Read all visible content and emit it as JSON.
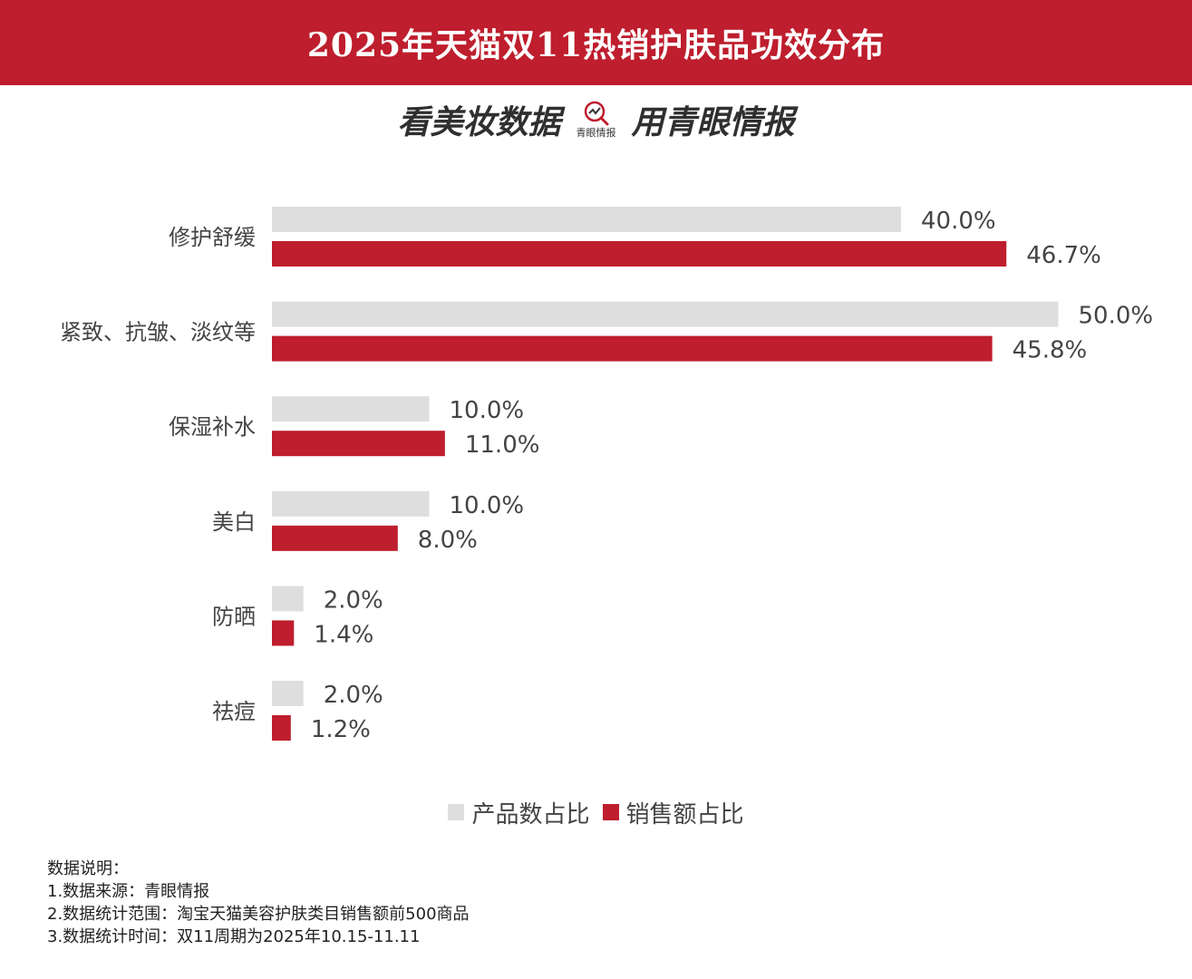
{
  "title": "2025年天猫双11热销护肤品功效分布",
  "slogan": {
    "left": "看美妆数据",
    "logo_caption": "青眼情报",
    "right": "用青眼情报"
  },
  "colors": {
    "brand_red": "#be1e2d",
    "product_gray": "#dedede",
    "sales_red": "#be1e2d"
  },
  "chart_data": {
    "type": "bar",
    "orientation": "horizontal",
    "categories": [
      "修护舒缓",
      "紧致、抗皱、淡纹等",
      "保湿补水",
      "美白",
      "防晒",
      "祛痘"
    ],
    "series": [
      {
        "name": "产品数占比",
        "color": "#dedede",
        "values": [
          40.0,
          50.0,
          10.0,
          10.0,
          2.0,
          2.0
        ],
        "labels": [
          "40.0%",
          "50.0%",
          "10.0%",
          "10.0%",
          "2.0%",
          "2.0%"
        ]
      },
      {
        "name": "销售额占比",
        "color": "#be1e2d",
        "values": [
          46.7,
          45.8,
          11.0,
          8.0,
          1.4,
          1.2
        ],
        "labels": [
          "46.7%",
          "45.8%",
          "11.0%",
          "8.0%",
          "1.4%",
          "1.2%"
        ]
      }
    ],
    "unit": "%",
    "legend_position": "bottom-center"
  },
  "legend": {
    "product": "产品数占比",
    "sales": "销售额占比"
  },
  "notes": {
    "heading": "数据说明：",
    "line1": "1.数据来源：青眼情报",
    "line2": "2.数据统计范围：淘宝天猫美容护肤类目销售额前500商品",
    "line3": "3.数据统计时间：双11周期为2025年10.15-11.11"
  }
}
